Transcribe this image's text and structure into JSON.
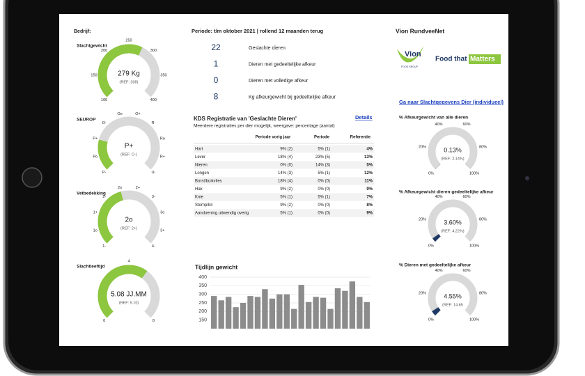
{
  "header": {
    "company": "Bedrijf:",
    "period": "Periode: t/m oktober 2021 | rollend 12 maanden terug",
    "brand_title": "Vion RundveeNet"
  },
  "logo": {
    "brand": "Vion",
    "sub": "FOOD GROUP",
    "tagline": "Food that",
    "highlight": "Matters"
  },
  "link": "Ga naar Slachtgegevens Dier (individueel)",
  "left_gauges": [
    {
      "title": "Slachtgewicht",
      "value": 279,
      "value_label": "279 Kg",
      "ref_label": "(REF: 308)",
      "color": "#8dc63f",
      "ticks": [
        100,
        150,
        200,
        250,
        300,
        350,
        400
      ]
    },
    {
      "title": "SEUROP",
      "value_label": "P+",
      "ref_label": "(REF: O-)",
      "color": "#8dc63f",
      "labels": [
        "P-",
        "Po",
        "P+",
        "O-",
        "Oo",
        "O+",
        "R-",
        "Ro",
        "R+",
        "U-"
      ]
    },
    {
      "title": "Vetbedekking",
      "value_label": "2o",
      "ref_label": "(REF: 2+)",
      "color": "#8dc63f",
      "labels": [
        "1-",
        "1o",
        "1+",
        "2-",
        "2o",
        "2+",
        "3-",
        "3o",
        "3+",
        "4-"
      ]
    },
    {
      "title": "Slachtleeftijd",
      "value": 5.08,
      "value_label": "5.08 JJ.MM",
      "ref_label": "(REF: 5.10)",
      "color": "#8dc63f",
      "ticks": [
        0,
        4,
        8
      ]
    }
  ],
  "stats": [
    {
      "number": "22",
      "text": "Geslachte dieren"
    },
    {
      "number": "1",
      "text": "Dieren met gedeeltelijke afkeur"
    },
    {
      "number": "0",
      "text": "Dieren met volledige afkeur"
    },
    {
      "number": "8",
      "text": "Kg afkeurgewicht bij gedeeltelijke afkeur"
    }
  ],
  "table": {
    "title": "KDS Registratie van 'Geslachte Dieren'",
    "details": "Details",
    "subtitle": "Meerdere registraties per dier mogelijk, weergave: percentage (aantal)",
    "columns": [
      "Periode vorig jaar",
      "Periode",
      "Referentie"
    ],
    "rows": [
      [
        "Hart",
        "9% (2)",
        "5% (1)",
        "4%"
      ],
      [
        "Lever",
        "18% (4)",
        "23% (5)",
        "13%"
      ],
      [
        "Nieren",
        "0% (0)",
        "14% (3)",
        "5%"
      ],
      [
        "Longen",
        "14% (3)",
        "5% (1)",
        "12%"
      ],
      [
        "Borst/buikvlies",
        "18% (4)",
        "0% (0)",
        "11%"
      ],
      [
        "Hak",
        "9% (2)",
        "0% (0)",
        "9%"
      ],
      [
        "Knie",
        "5% (1)",
        "5% (1)",
        "7%"
      ],
      [
        "Stomp/bil",
        "9% (2)",
        "0% (0)",
        "8%"
      ],
      [
        "Aandoening uitwendig overig",
        "5% (1)",
        "0% (0)",
        "9%"
      ]
    ]
  },
  "timeline": {
    "type": "bar",
    "title": "Tijdlijn gewicht",
    "color": "#8c8c8c",
    "values": [
      290,
      265,
      285,
      225,
      250,
      290,
      285,
      330,
      275,
      300,
      300,
      215,
      355,
      255,
      285,
      280,
      215,
      335,
      320,
      375,
      285,
      255
    ],
    "ylim": [
      100,
      400
    ],
    "yticks": [
      150,
      200,
      250,
      300,
      350,
      400
    ],
    "grid": true
  },
  "right_gauges": [
    {
      "title": "% Afkeurgewicht van alle dieren",
      "value": 0.13,
      "value_label": "0.13%",
      "ref_label": "(REF: 2.14%)",
      "color": "#1f3864",
      "ticks": [
        {
          "value": 0,
          "label": "0%"
        },
        {
          "value": 20,
          "label": "20%"
        },
        {
          "value": 40,
          "label": "40%"
        },
        {
          "value": 60,
          "label": "60%"
        },
        {
          "value": 80,
          "label": "80%"
        },
        {
          "value": 100,
          "label": "100%"
        }
      ]
    },
    {
      "title": "% Afkeurgewicht dieren gedeeltelijke afkeur",
      "value": 3.6,
      "value_label": "3.60%",
      "ref_label": "(REF: 4.22%)",
      "color": "#1f3864",
      "ticks": [
        {
          "value": 0,
          "label": "0%"
        },
        {
          "value": 20,
          "label": "20%"
        },
        {
          "value": 40,
          "label": "40%"
        },
        {
          "value": 60,
          "label": "60%"
        },
        {
          "value": 80,
          "label": "80%"
        },
        {
          "value": 100,
          "label": "100%"
        }
      ]
    },
    {
      "title": "% Dieren met gedeeltelijke afkeur",
      "value": 4.55,
      "value_label": "4.55%",
      "ref_label": "(REF: 14.65",
      "color": "#1f3864",
      "ticks": [
        {
          "value": 0,
          "label": "0%"
        },
        {
          "value": 20,
          "label": "20%"
        },
        {
          "value": 40,
          "label": "40%"
        },
        {
          "value": 60,
          "label": "60%"
        },
        {
          "value": 80,
          "label": "80%"
        },
        {
          "value": 100,
          "label": "100%"
        }
      ]
    }
  ]
}
